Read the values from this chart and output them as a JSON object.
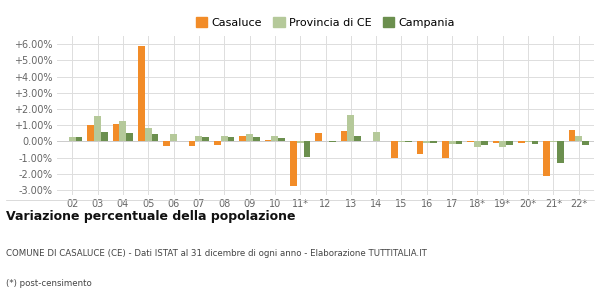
{
  "categories": [
    "02",
    "03",
    "04",
    "05",
    "06",
    "07",
    "08",
    "09",
    "10",
    "11*",
    "12",
    "13",
    "14",
    "15",
    "16",
    "17",
    "18*",
    "19*",
    "20*",
    "21*",
    "22*"
  ],
  "casaluce": [
    0.0,
    1.0,
    1.1,
    5.9,
    -0.25,
    -0.3,
    -0.2,
    0.35,
    0.1,
    -2.75,
    0.55,
    0.65,
    0.0,
    -1.05,
    -0.75,
    -1.05,
    -0.05,
    -0.1,
    -0.1,
    -2.1,
    0.7
  ],
  "provincia": [
    0.3,
    1.55,
    1.25,
    0.85,
    0.45,
    0.35,
    0.35,
    0.45,
    0.35,
    -0.1,
    0.0,
    1.65,
    0.6,
    -0.05,
    -0.1,
    -0.15,
    -0.35,
    -0.35,
    -0.05,
    -0.05,
    0.35
  ],
  "campania": [
    0.25,
    0.6,
    0.5,
    0.45,
    0.0,
    0.3,
    0.3,
    0.25,
    0.2,
    -0.95,
    -0.05,
    0.35,
    0.0,
    -0.05,
    -0.1,
    -0.15,
    -0.2,
    -0.2,
    -0.15,
    -1.3,
    -0.2
  ],
  "color_casaluce": "#f28c28",
  "color_provincia": "#b5c99a",
  "color_campania": "#6b8f4e",
  "background": "#ffffff",
  "grid_color": "#dddddd",
  "yticks": [
    -3.0,
    -2.0,
    -1.0,
    0.0,
    1.0,
    2.0,
    3.0,
    4.0,
    5.0,
    6.0
  ],
  "ylim": [
    -3.3,
    6.5
  ],
  "title_main": "Variazione percentuale della popolazione",
  "title_sub1": "COMUNE DI CASALUCE (CE) - Dati ISTAT al 31 dicembre di ogni anno - Elaborazione TUTTITALIA.IT",
  "title_sub2": "(*) post-censimento",
  "legend_labels": [
    "Casaluce",
    "Provincia di CE",
    "Campania"
  ]
}
